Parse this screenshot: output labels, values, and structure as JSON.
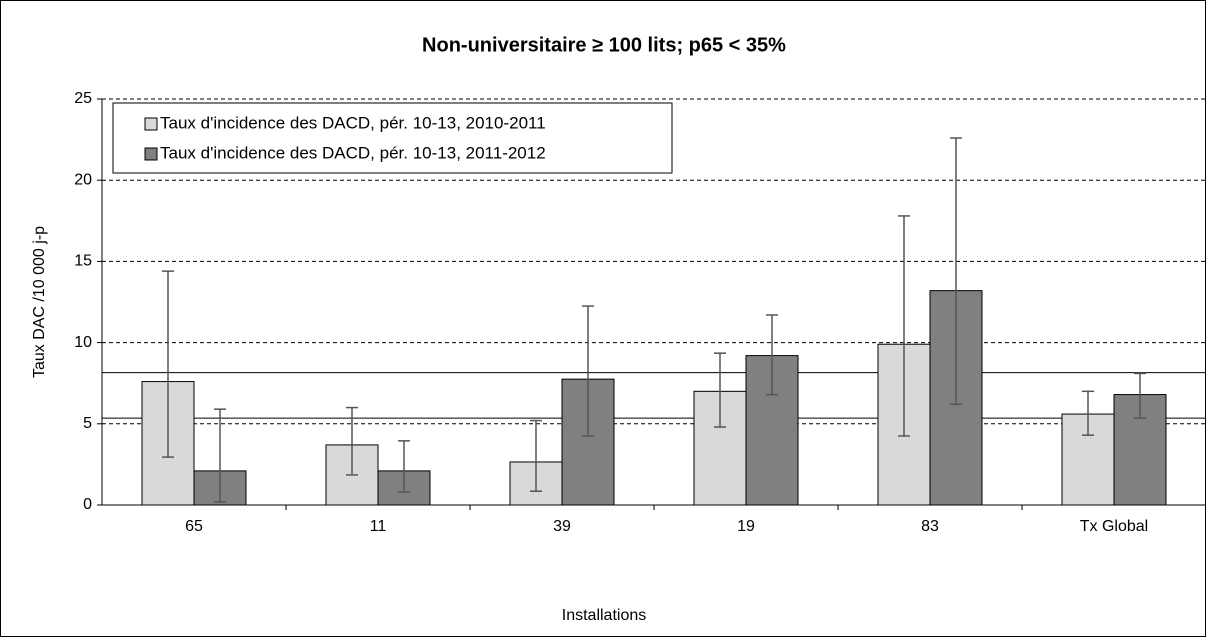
{
  "chart_data": {
    "type": "bar",
    "title": "Non-universitaire ≥ 100 lits; p65 < 35%",
    "x_label": "Installations",
    "y_label": "Taux DAC /10 000 j-p",
    "categories": [
      "65",
      "11",
      "39",
      "19",
      "83",
      "Tx Global"
    ],
    "series": [
      {
        "name": "Taux d'incidence des DACD, pér. 10-13, 2010-2011",
        "color": "#d9d9d9",
        "values": [
          7.6,
          3.7,
          2.65,
          7.0,
          9.9,
          5.6
        ],
        "lower": [
          2.95,
          1.85,
          0.85,
          4.8,
          4.25,
          4.3
        ],
        "upper": [
          14.4,
          6.0,
          5.2,
          9.35,
          17.8,
          7.0
        ]
      },
      {
        "name": "Taux d'incidence des DACD, pér. 10-13, 2011-2012",
        "color": "#808080",
        "values": [
          2.1,
          2.1,
          7.75,
          9.2,
          13.2,
          6.8
        ],
        "lower": [
          0.2,
          0.8,
          4.25,
          6.8,
          6.2,
          5.35
        ],
        "upper": [
          5.9,
          3.95,
          12.25,
          11.7,
          22.6,
          8.1
        ]
      }
    ],
    "reference_band": [
      5.35,
      8.15
    ],
    "ylim": [
      0,
      25
    ],
    "yticks": [
      0,
      5,
      10,
      15,
      20,
      25
    ],
    "grid": true,
    "legend": "top-left"
  }
}
